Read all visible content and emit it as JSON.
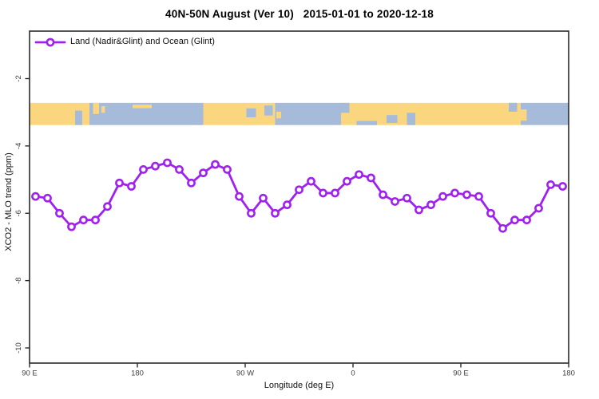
{
  "header": {
    "title": "40N-50N August (Ver 10)   2015-01-01 to 2020-12-18"
  },
  "legend": {
    "label": "Land (Nadir&Glint) and Ocean (Glint)"
  },
  "axes": {
    "x_label": "Longitude (deg E)",
    "y_label": "XCO2 - MLO trend (ppm)",
    "x_ticks": [
      {
        "deg": 90,
        "label": "90 E"
      },
      {
        "deg": 180,
        "label": "180"
      },
      {
        "deg": 270,
        "label": "90 W"
      },
      {
        "deg": 360,
        "label": "0"
      },
      {
        "deg": 450,
        "label": "90 E"
      },
      {
        "deg": 540,
        "label": "180"
      }
    ],
    "y_ticks": [
      {
        "value": -2,
        "label": "-2"
      },
      {
        "value": -4,
        "label": "-4"
      },
      {
        "value": -6,
        "label": "-6"
      },
      {
        "value": -8,
        "label": "-8"
      },
      {
        "value": -10,
        "label": "-10"
      }
    ]
  },
  "colors": {
    "line": "#A020F0",
    "marker_fill": "#ffffff",
    "land": "#FAD67F",
    "ocean": "#A6BADA",
    "box": "#2b2b2b",
    "tick_text": "#404040"
  },
  "chart_data": {
    "type": "line",
    "title": "40N-50N August (Ver 10)   2015-01-01 to 2020-12-18",
    "xlabel": "Longitude (deg E)",
    "ylabel": "XCO2 - MLO trend (ppm)",
    "xlim": [
      90,
      540
    ],
    "ylim": [
      -10.45,
      -0.59
    ],
    "grid": false,
    "legend_position": "top-left-inside",
    "x_axis_note": "axis runs 90E eastward around the globe to 180 (450 deg span)",
    "series": [
      {
        "name": "Land (Nadir&Glint) and Ocean (Glint)",
        "color": "#A020F0",
        "marker": "open-circle",
        "x": [
          95,
          105,
          115,
          125,
          135,
          145,
          155,
          165,
          175,
          185,
          195,
          205,
          215,
          225,
          235,
          245,
          255,
          265,
          275,
          285,
          295,
          305,
          315,
          325,
          335,
          345,
          355,
          365,
          375,
          385,
          395,
          405,
          415,
          425,
          435,
          445,
          455,
          465,
          475,
          485,
          495,
          505,
          515,
          525,
          535
        ],
        "values": [
          -5.5,
          -5.55,
          -6.0,
          -6.4,
          -6.2,
          -6.2,
          -5.8,
          -5.1,
          -5.2,
          -4.7,
          -4.6,
          -4.5,
          -4.7,
          -5.1,
          -4.8,
          -4.55,
          -4.7,
          -5.5,
          -6.0,
          -5.55,
          -6.0,
          -5.75,
          -5.3,
          -5.05,
          -5.4,
          -5.4,
          -5.05,
          -4.85,
          -4.95,
          -5.45,
          -5.65,
          -5.55,
          -5.9,
          -5.75,
          -5.5,
          -5.4,
          -5.45,
          -5.5,
          -6.0,
          -6.45,
          -6.2,
          -6.2,
          -5.85,
          -5.15,
          -5.2
        ]
      }
    ],
    "map_band": {
      "description": "40N-50N latitude strip world map drawn as a horizontal band",
      "value_top": -2.72,
      "value_bottom": -3.38,
      "segments": [
        {
          "from": 90,
          "to": 140,
          "surface": "land"
        },
        {
          "from": 140,
          "to": 235,
          "surface": "ocean"
        },
        {
          "from": 235,
          "to": 295,
          "surface": "land"
        },
        {
          "from": 295,
          "to": 350,
          "surface": "ocean"
        },
        {
          "from": 350,
          "to": 500,
          "surface": "land"
        },
        {
          "from": 500,
          "to": 540,
          "surface": "ocean"
        }
      ],
      "details": [
        {
          "from": 128,
          "to": 134,
          "y": 0.35,
          "h": 0.65,
          "surface": "ocean"
        },
        {
          "from": 136,
          "to": 139,
          "y": 0.55,
          "h": 0.35,
          "surface": "land"
        },
        {
          "from": 143,
          "to": 148,
          "y": 0.0,
          "h": 0.5,
          "surface": "land"
        },
        {
          "from": 150,
          "to": 153,
          "y": 0.15,
          "h": 0.3,
          "surface": "land"
        },
        {
          "from": 176,
          "to": 192,
          "y": 0.08,
          "h": 0.16,
          "surface": "land"
        },
        {
          "from": 271,
          "to": 279,
          "y": 0.25,
          "h": 0.4,
          "surface": "ocean"
        },
        {
          "from": 286,
          "to": 293,
          "y": 0.12,
          "h": 0.45,
          "surface": "ocean"
        },
        {
          "from": 296,
          "to": 300,
          "y": 0.4,
          "h": 0.3,
          "surface": "land"
        },
        {
          "from": 350,
          "to": 357,
          "y": 0.0,
          "h": 0.45,
          "surface": "ocean"
        },
        {
          "from": 363,
          "to": 380,
          "y": 0.82,
          "h": 0.18,
          "surface": "ocean"
        },
        {
          "from": 388,
          "to": 397,
          "y": 0.55,
          "h": 0.35,
          "surface": "ocean"
        },
        {
          "from": 405,
          "to": 412,
          "y": 0.45,
          "h": 0.55,
          "surface": "ocean"
        },
        {
          "from": 490,
          "to": 497,
          "y": 0.0,
          "h": 0.4,
          "surface": "ocean"
        },
        {
          "from": 500,
          "to": 505,
          "y": 0.3,
          "h": 0.5,
          "surface": "land"
        }
      ]
    }
  }
}
